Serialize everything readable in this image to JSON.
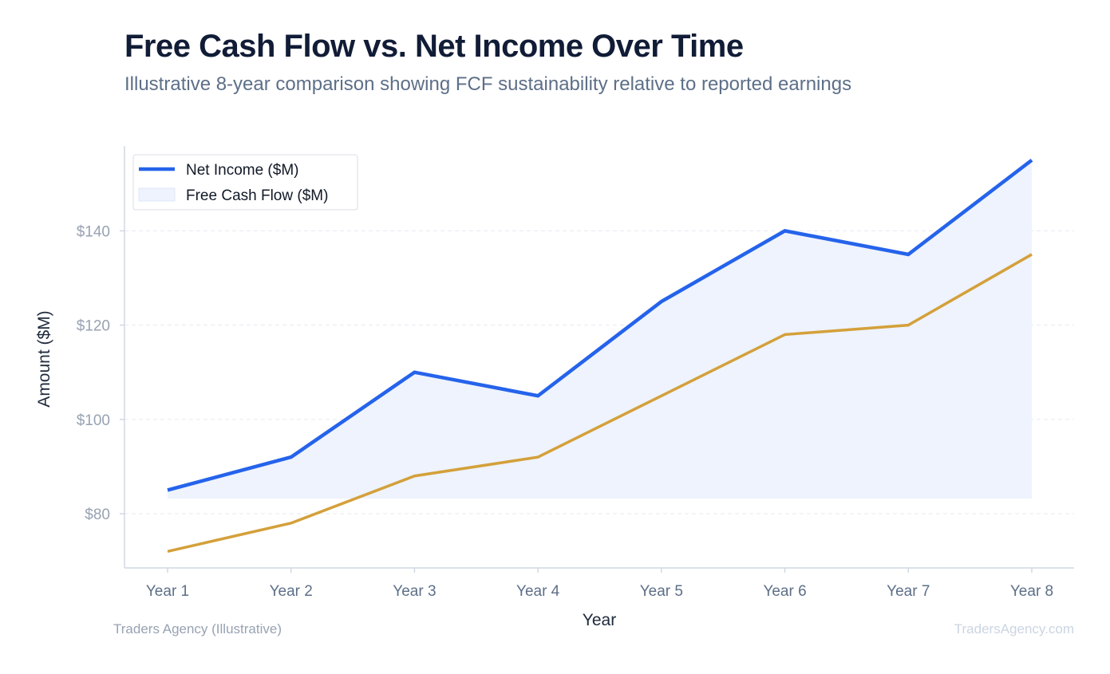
{
  "page": {
    "title": "Free Cash Flow vs. Net Income Over Time",
    "subtitle": "Illustrative 8-year comparison showing FCF sustainability relative to reported earnings",
    "footer_left": "Traders Agency (Illustrative)",
    "footer_right": "TradersAgency.com"
  },
  "chart_data": {
    "type": "line",
    "title": "Free Cash Flow vs. Net Income Over Time",
    "subtitle": "Illustrative 8-year comparison showing FCF sustainability relative to reported earnings",
    "xlabel": "Year",
    "ylabel": "Amount ($M)",
    "categories": [
      "Year 1",
      "Year 2",
      "Year 3",
      "Year 4",
      "Year 5",
      "Year 6",
      "Year 7",
      "Year 8"
    ],
    "series": [
      {
        "name": "Net Income ($M)",
        "values": [
          85,
          92,
          110,
          105,
          125,
          140,
          135,
          155
        ],
        "color": "#2563eb"
      },
      {
        "name": "Free Cash Flow ($M)",
        "values": [
          72,
          78,
          88,
          92,
          105,
          118,
          120,
          135
        ],
        "color": "#d4a03a"
      }
    ],
    "area_fill_color": "#eef3fd",
    "area_baseline": 83.2,
    "ylim": [
      68.5,
      158
    ],
    "yticks": [
      80,
      100,
      120,
      140
    ],
    "ytick_labels": [
      "$80",
      "$100",
      "$120",
      "$140"
    ],
    "grid": true,
    "legend": "top-left"
  }
}
